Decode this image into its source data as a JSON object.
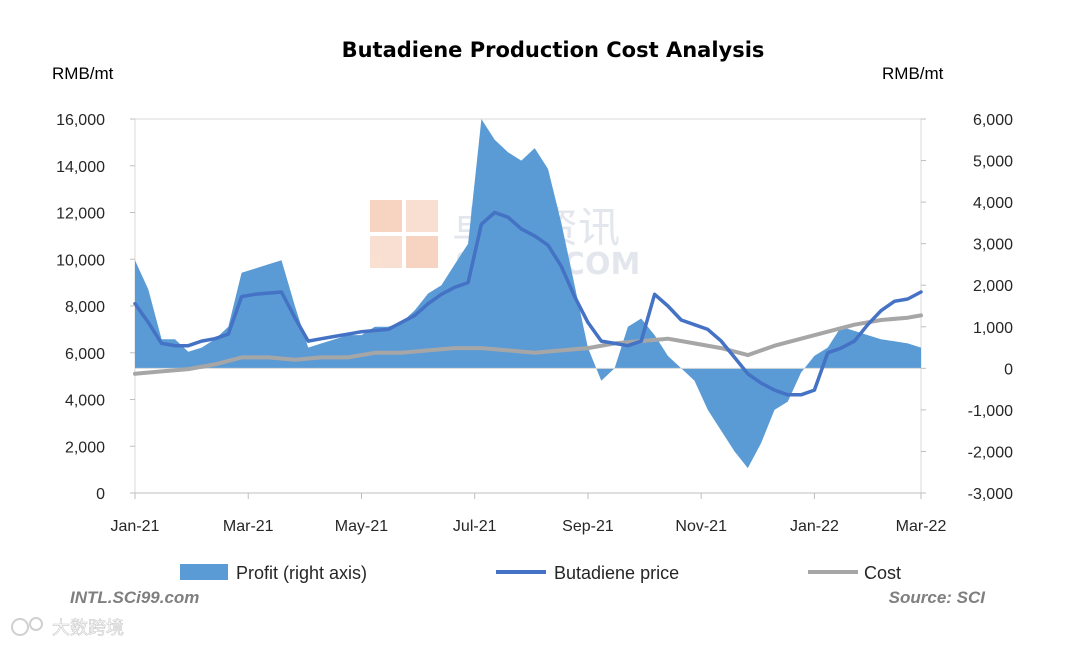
{
  "chart_data": {
    "type": "area+line",
    "title": "Butadiene Production Cost Analysis",
    "left_axis": {
      "unit": "RMB/mt",
      "ticks": [
        "0",
        "2,000",
        "4,000",
        "6,000",
        "8,000",
        "10,000",
        "12,000",
        "14,000",
        "16,000"
      ],
      "range": [
        0,
        16000
      ]
    },
    "right_axis": {
      "unit": "RMB/mt",
      "ticks": [
        "-3,000",
        "-2,000",
        "-1,000",
        "0",
        "1,000",
        "2,000",
        "3,000",
        "4,000",
        "5,000",
        "6,000"
      ],
      "range": [
        -3000,
        6000
      ]
    },
    "x_axis": {
      "range": [
        0,
        59
      ],
      "labels": [
        {
          "label": "Jan-21",
          "at": 0
        },
        {
          "label": "Mar-21",
          "at": 8.5
        },
        {
          "label": "May-21",
          "at": 17
        },
        {
          "label": "Jul-21",
          "at": 25.5
        },
        {
          "label": "Sep-21",
          "at": 34
        },
        {
          "label": "Nov-21",
          "at": 42.5
        },
        {
          "label": "Jan-22",
          "at": 51
        },
        {
          "label": "Mar-22",
          "at": 59
        }
      ]
    },
    "series": [
      {
        "name": "Profit (right axis)",
        "axis": "right",
        "kind": "area",
        "color": "#5b9bd5",
        "points": [
          [
            0,
            2600
          ],
          [
            1,
            1900
          ],
          [
            2,
            700
          ],
          [
            3,
            700
          ],
          [
            4,
            400
          ],
          [
            5,
            500
          ],
          [
            6,
            700
          ],
          [
            7,
            1000
          ],
          [
            8,
            2300
          ],
          [
            9,
            2400
          ],
          [
            10,
            2500
          ],
          [
            11,
            2600
          ],
          [
            12,
            1500
          ],
          [
            13,
            500
          ],
          [
            14,
            600
          ],
          [
            15,
            700
          ],
          [
            16,
            800
          ],
          [
            17,
            800
          ],
          [
            18,
            1000
          ],
          [
            19,
            1000
          ],
          [
            20,
            1100
          ],
          [
            21,
            1400
          ],
          [
            22,
            1800
          ],
          [
            23,
            2000
          ],
          [
            24,
            2500
          ],
          [
            25,
            3000
          ],
          [
            26,
            6000
          ],
          [
            27,
            5500
          ],
          [
            28,
            5200
          ],
          [
            29,
            5000
          ],
          [
            30,
            5300
          ],
          [
            31,
            4800
          ],
          [
            32,
            3500
          ],
          [
            33,
            2000
          ],
          [
            34,
            500
          ],
          [
            35,
            -300
          ],
          [
            36,
            0
          ],
          [
            37,
            1000
          ],
          [
            38,
            1200
          ],
          [
            39,
            800
          ],
          [
            40,
            300
          ],
          [
            41,
            0
          ],
          [
            42,
            -300
          ],
          [
            43,
            -1000
          ],
          [
            44,
            -1500
          ],
          [
            45,
            -2000
          ],
          [
            46,
            -2400
          ],
          [
            47,
            -1800
          ],
          [
            48,
            -1000
          ],
          [
            49,
            -800
          ],
          [
            50,
            -100
          ],
          [
            51,
            300
          ],
          [
            52,
            500
          ],
          [
            53,
            1000
          ],
          [
            54,
            900
          ],
          [
            55,
            800
          ],
          [
            56,
            700
          ],
          [
            57,
            650
          ],
          [
            58,
            600
          ],
          [
            59,
            500
          ]
        ]
      },
      {
        "name": "Butadiene price",
        "axis": "left",
        "kind": "line",
        "color": "#4472c4",
        "points": [
          [
            0,
            8100
          ],
          [
            1,
            7300
          ],
          [
            2,
            6400
          ],
          [
            3,
            6300
          ],
          [
            4,
            6300
          ],
          [
            5,
            6500
          ],
          [
            6,
            6600
          ],
          [
            7,
            6800
          ],
          [
            8,
            8400
          ],
          [
            9,
            8500
          ],
          [
            10,
            8550
          ],
          [
            11,
            8600
          ],
          [
            12,
            7500
          ],
          [
            13,
            6500
          ],
          [
            14,
            6600
          ],
          [
            15,
            6700
          ],
          [
            16,
            6800
          ],
          [
            17,
            6900
          ],
          [
            18,
            6950
          ],
          [
            19,
            7000
          ],
          [
            20,
            7300
          ],
          [
            21,
            7600
          ],
          [
            22,
            8100
          ],
          [
            23,
            8500
          ],
          [
            24,
            8800
          ],
          [
            25,
            9000
          ],
          [
            26,
            11500
          ],
          [
            27,
            12000
          ],
          [
            28,
            11800
          ],
          [
            29,
            11300
          ],
          [
            30,
            11000
          ],
          [
            31,
            10600
          ],
          [
            32,
            9700
          ],
          [
            33,
            8400
          ],
          [
            34,
            7300
          ],
          [
            35,
            6500
          ],
          [
            36,
            6400
          ],
          [
            37,
            6300
          ],
          [
            38,
            6500
          ],
          [
            39,
            8500
          ],
          [
            40,
            8000
          ],
          [
            41,
            7400
          ],
          [
            42,
            7200
          ],
          [
            43,
            7000
          ],
          [
            44,
            6500
          ],
          [
            45,
            5800
          ],
          [
            46,
            5100
          ],
          [
            47,
            4700
          ],
          [
            48,
            4400
          ],
          [
            49,
            4200
          ],
          [
            50,
            4200
          ],
          [
            51,
            4400
          ],
          [
            52,
            6000
          ],
          [
            53,
            6200
          ],
          [
            54,
            6500
          ],
          [
            55,
            7200
          ],
          [
            56,
            7800
          ],
          [
            57,
            8200
          ],
          [
            58,
            8300
          ],
          [
            59,
            8600
          ]
        ]
      },
      {
        "name": "Cost",
        "axis": "left",
        "kind": "line",
        "color": "#a6a6a6",
        "points": [
          [
            0,
            5100
          ],
          [
            2,
            5200
          ],
          [
            4,
            5300
          ],
          [
            6,
            5500
          ],
          [
            8,
            5800
          ],
          [
            10,
            5800
          ],
          [
            12,
            5700
          ],
          [
            14,
            5800
          ],
          [
            16,
            5800
          ],
          [
            18,
            6000
          ],
          [
            20,
            6000
          ],
          [
            22,
            6100
          ],
          [
            24,
            6200
          ],
          [
            26,
            6200
          ],
          [
            28,
            6100
          ],
          [
            30,
            6000
          ],
          [
            32,
            6100
          ],
          [
            34,
            6200
          ],
          [
            36,
            6400
          ],
          [
            38,
            6500
          ],
          [
            40,
            6600
          ],
          [
            42,
            6400
          ],
          [
            44,
            6200
          ],
          [
            46,
            5900
          ],
          [
            48,
            6300
          ],
          [
            50,
            6600
          ],
          [
            52,
            6900
          ],
          [
            54,
            7200
          ],
          [
            56,
            7400
          ],
          [
            58,
            7500
          ],
          [
            59,
            7600
          ]
        ]
      }
    ],
    "legend_position": "bottom",
    "annotations": [
      "INTL.SCi99.com",
      "Source: SCI"
    ]
  },
  "watermark": {
    "cn": "卓创资讯",
    "en": "SCI99.COM"
  },
  "badge": "大数跨境"
}
